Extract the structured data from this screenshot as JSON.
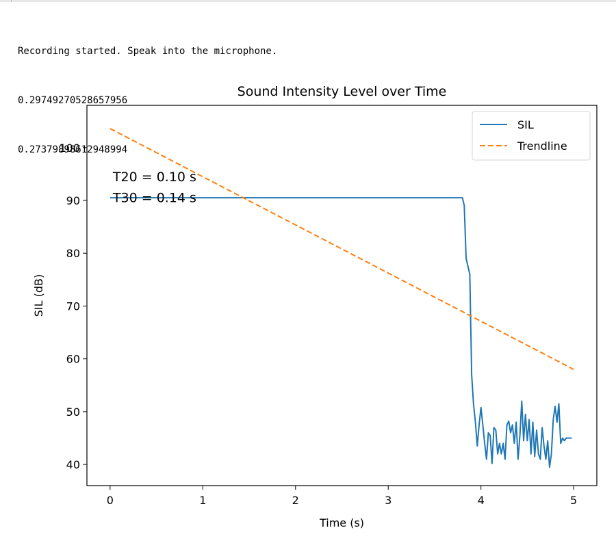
{
  "output": {
    "lines": [
      "Recording started. Speak into the microphone.",
      "0.29749270528657956",
      "0.27379898612948994"
    ]
  },
  "colors": {
    "series_sil": "#1f77b4",
    "series_trend": "#ff7f0e",
    "axis": "#000000",
    "text": "#000000"
  },
  "chart_data": {
    "type": "line",
    "title": "Sound Intensity Level over Time",
    "xlabel": "Time (s)",
    "ylabel": "SIL (dB)",
    "xlim": [
      -0.25,
      5.25
    ],
    "ylim": [
      36,
      108
    ],
    "xticks": [
      0,
      1,
      2,
      3,
      4,
      5
    ],
    "yticks": [
      40,
      50,
      60,
      70,
      80,
      90,
      100
    ],
    "grid": false,
    "legend_position": "top-right",
    "annotations": [
      "T20 = 0.10 s",
      "T30 = 0.14 s"
    ],
    "series": [
      {
        "name": "SIL",
        "style": "solid",
        "x": [
          0,
          0.5,
          1,
          1.5,
          2,
          2.5,
          3,
          3.5,
          3.8,
          3.82,
          3.84,
          3.86,
          3.88,
          3.9,
          3.92,
          3.94,
          3.96,
          3.98,
          4.0,
          4.02,
          4.04,
          4.06,
          4.08,
          4.1,
          4.12,
          4.14,
          4.16,
          4.18,
          4.2,
          4.22,
          4.24,
          4.26,
          4.28,
          4.3,
          4.32,
          4.34,
          4.36,
          4.38,
          4.4,
          4.42,
          4.44,
          4.46,
          4.48,
          4.5,
          4.52,
          4.54,
          4.56,
          4.58,
          4.6,
          4.62,
          4.64,
          4.66,
          4.68,
          4.7,
          4.72,
          4.74,
          4.76,
          4.78,
          4.8,
          4.82,
          4.84,
          4.86,
          4.88,
          4.9,
          4.92,
          4.94,
          4.96,
          4.98
        ],
        "y": [
          90.5,
          90.5,
          90.5,
          90.5,
          90.5,
          90.5,
          90.5,
          90.5,
          90.5,
          89.0,
          79.0,
          77.5,
          76.0,
          57.0,
          51.5,
          48.0,
          43.5,
          47.5,
          50.8,
          47.5,
          44.0,
          41.0,
          46.0,
          45.5,
          40.2,
          47.0,
          46.5,
          42.0,
          44.0,
          42.0,
          44.0,
          41.0,
          47.5,
          48.2,
          46.0,
          47.5,
          44.0,
          48.0,
          41.0,
          45.5,
          52.0,
          44.5,
          49.5,
          44.5,
          48.5,
          42.0,
          48.0,
          41.5,
          46.5,
          42.0,
          41.0,
          47.0,
          43.5,
          41.0,
          44.5,
          39.5,
          42.0,
          48.5,
          51.0,
          48.0,
          51.5,
          44.0,
          45.0,
          44.5,
          45.0,
          45.0,
          45.0,
          45.0
        ]
      },
      {
        "name": "Trendline",
        "style": "dashed",
        "x": [
          0,
          5
        ],
        "y": [
          103.6,
          58.0
        ]
      }
    ]
  }
}
